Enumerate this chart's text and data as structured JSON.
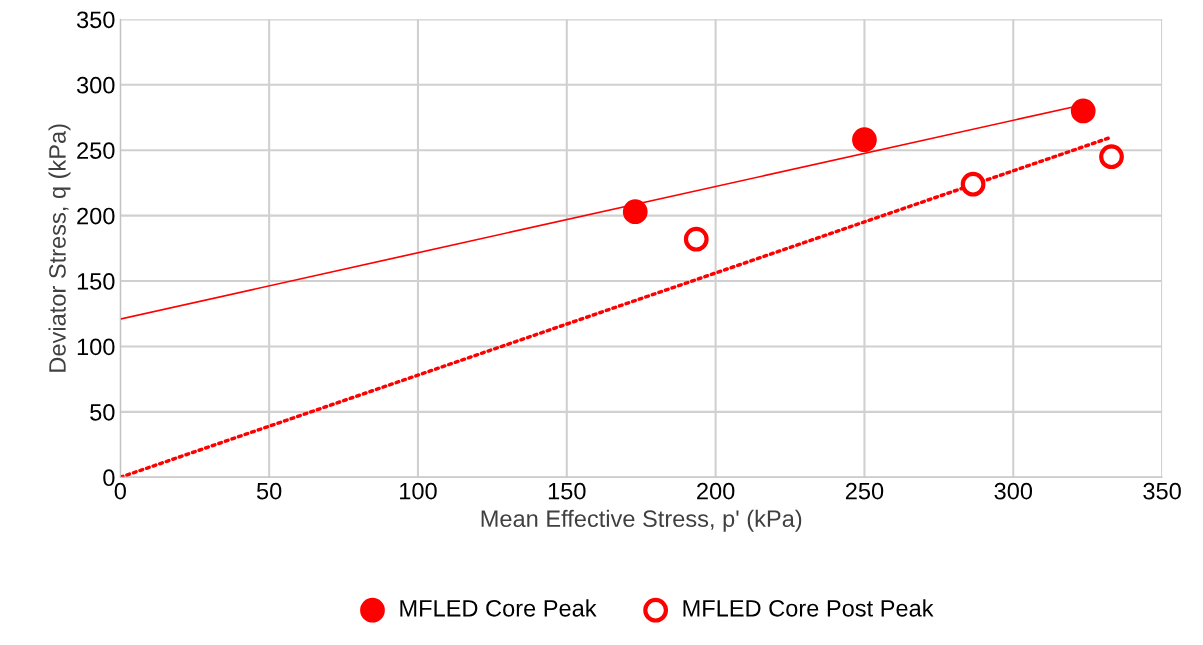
{
  "chart_data": {
    "type": "scatter",
    "xlabel": "Mean Effective Stress, p' (kPa)",
    "ylabel": "Deviator Stress, q (kPa)",
    "xlim": [
      0,
      350
    ],
    "xticks": [
      0,
      50,
      100,
      150,
      200,
      250,
      300,
      350
    ],
    "ylim": [
      0,
      350
    ],
    "yticks": [
      0,
      50,
      100,
      150,
      200,
      250,
      300,
      350
    ],
    "grid": true,
    "legend": "bottom",
    "series": [
      {
        "name": "MFLED Core Peak",
        "marker": "circle",
        "color": "#ff0000",
        "x": [
          173,
          250,
          323.5
        ],
        "values": [
          203,
          258,
          280
        ]
      },
      {
        "name": "MFLED Core Post Peak",
        "marker": "circle",
        "color": "#ff0000",
        "x": [
          193.5,
          286.5,
          333
        ],
        "values": [
          182,
          224,
          245
        ]
      },
      {
        "type": "line",
        "line_style": "solid",
        "marker": "none",
        "color": "#ff0000",
        "x": [
          0,
          324
        ],
        "values": [
          121,
          285
        ]
      },
      {
        "type": "line",
        "line_style": "dotted",
        "marker": "none",
        "color": "#ff0000",
        "x": [
          0,
          333
        ],
        "values": [
          0,
          260
        ]
      }
    ]
  }
}
